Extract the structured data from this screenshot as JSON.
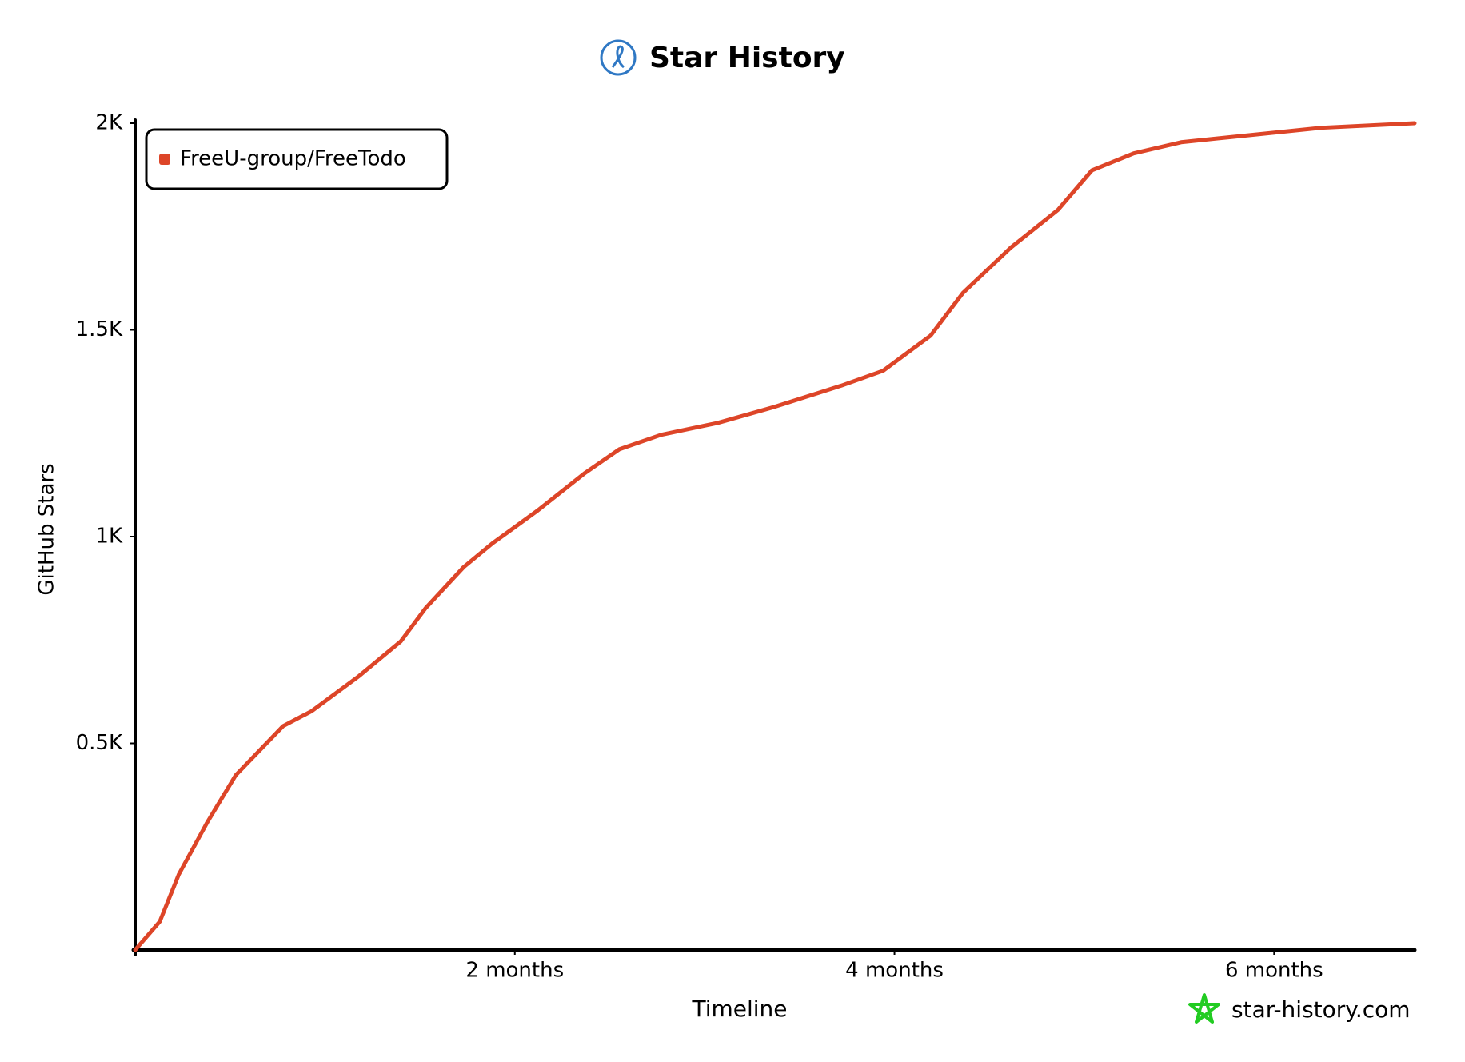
{
  "chart_data": {
    "type": "line",
    "title": "Star History",
    "x_label": "Timeline",
    "y_label": "GitHub Stars",
    "source": "star-history.com",
    "legend": "top-left",
    "grid": false,
    "xlim": [
      0,
      6.74
    ],
    "xticks": [
      {
        "value": 2,
        "label": "2 months"
      },
      {
        "value": 4,
        "label": "4 months"
      },
      {
        "value": 6,
        "label": "6 months"
      }
    ],
    "ylim": [
      0,
      2000
    ],
    "yticks": [
      {
        "value": 500,
        "label": "0.5K"
      },
      {
        "value": 1000,
        "label": "1K"
      },
      {
        "value": 1500,
        "label": "1.5K"
      },
      {
        "value": 2000,
        "label": "2K"
      }
    ],
    "x": [
      0,
      0.13,
      0.23,
      0.38,
      0.53,
      0.78,
      0.93,
      1.18,
      1.4,
      1.53,
      1.73,
      1.88,
      2.12,
      2.37,
      2.55,
      2.77,
      3.07,
      3.37,
      3.72,
      3.94,
      4.19,
      4.36,
      4.61,
      4.86,
      5.04,
      5.26,
      5.51,
      5.76,
      6.25,
      6.74
    ],
    "series": [
      {
        "name": "FreeU-group/FreeTodo",
        "color": "#dd4528",
        "values": [
          0,
          69,
          183,
          309,
          423,
          542,
          578,
          663,
          747,
          827,
          926,
          983,
          1063,
          1154,
          1211,
          1246,
          1275,
          1314,
          1365,
          1401,
          1486,
          1589,
          1698,
          1790,
          1886,
          1927,
          1954,
          1966,
          1989,
          2000
        ]
      }
    ]
  }
}
